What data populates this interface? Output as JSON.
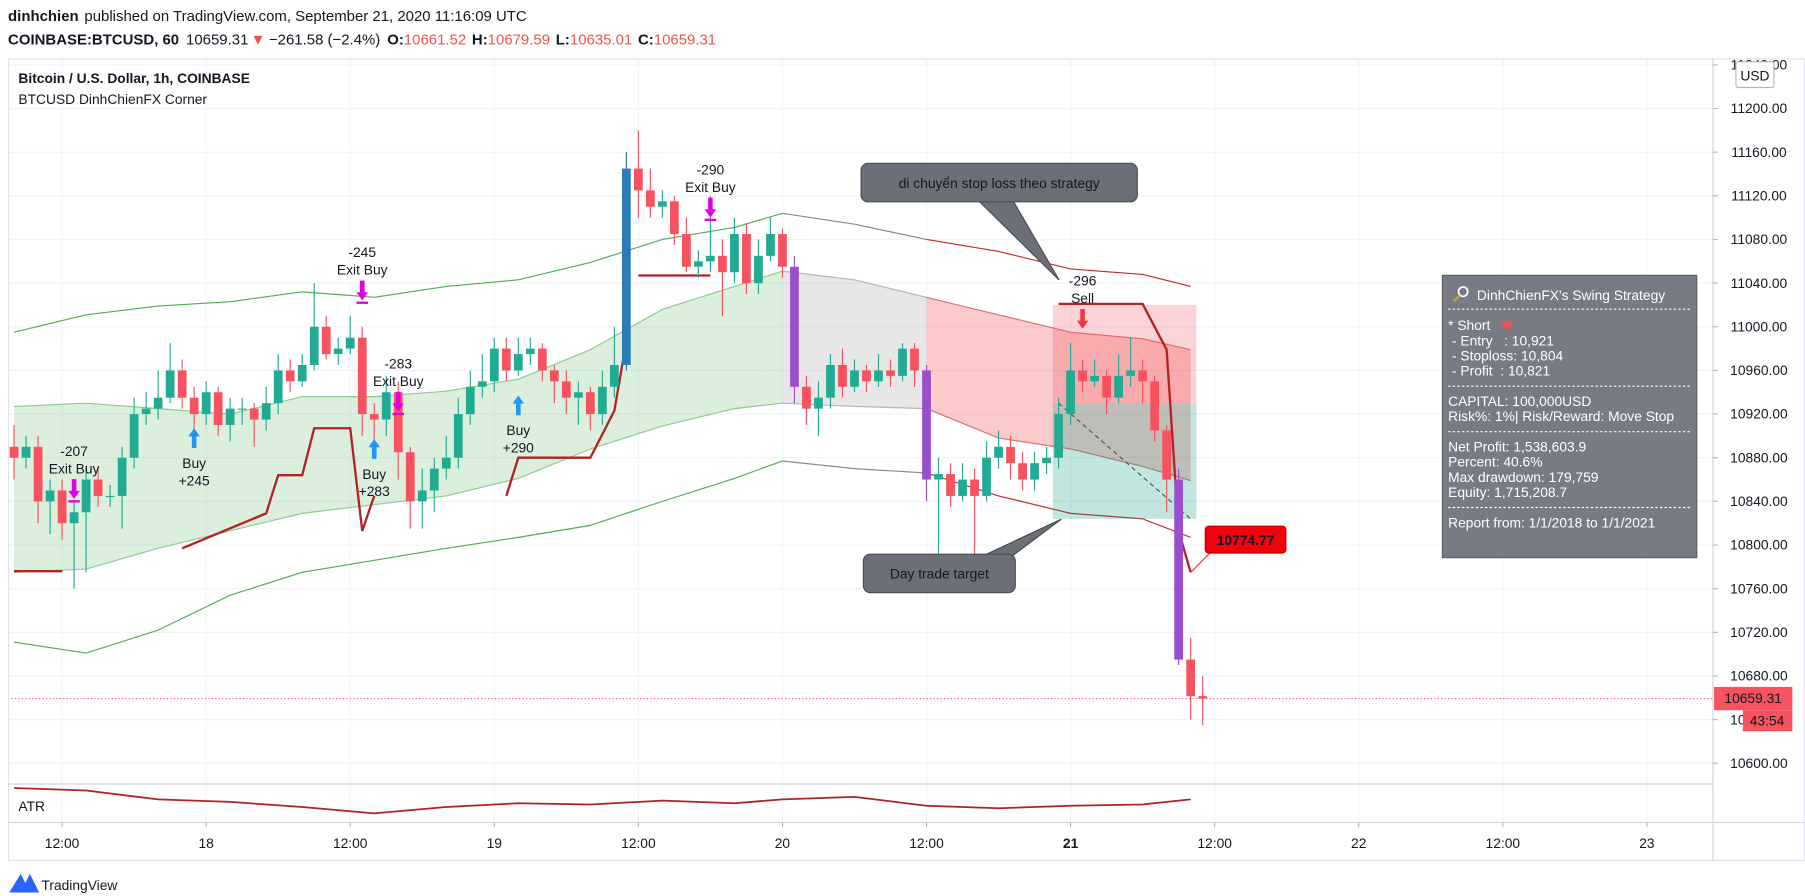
{
  "header": {
    "author": "dinhchien",
    "published": "published on TradingView.com, September 21, 2020 11:16:09 UTC",
    "symbol": "COINBASE:BTCUSD, 60",
    "last": "10659.31",
    "arrow": "▼",
    "change": "−261.58 (−2.4%)",
    "o_label": "O:",
    "o": "10661.52",
    "h_label": "H:",
    "h": "10679.59",
    "l_label": "L:",
    "l": "10635.01",
    "c_label": "C:",
    "c": "10659.31"
  },
  "chart_data": {
    "type": "candlestick",
    "title": "Bitcoin / U.S. Dollar, 1h, COINBASE",
    "subtitle": "BTCUSD DinhChienFX Corner",
    "currency": "USD",
    "xlim": [
      -0.5,
      141.5
    ],
    "xticks": [
      {
        "value": 4,
        "label": "12:00"
      },
      {
        "value": 16,
        "label": "18"
      },
      {
        "value": 28,
        "label": "12:00"
      },
      {
        "value": 40,
        "label": "19"
      },
      {
        "value": 52,
        "label": "12:00"
      },
      {
        "value": 64,
        "label": "20"
      },
      {
        "value": 76,
        "label": "12:00"
      },
      {
        "value": 88,
        "label": "21",
        "bold": true
      },
      {
        "value": 100,
        "label": "12:00"
      },
      {
        "value": 112,
        "label": "22"
      },
      {
        "value": 124,
        "label": "12:00"
      },
      {
        "value": 136,
        "label": "23"
      }
    ],
    "ylim": [
      10581,
      11246
    ],
    "yticks": [
      {
        "value": 10600,
        "label": "10600.00"
      },
      {
        "value": 10640,
        "label": "10640.00"
      },
      {
        "value": 10680,
        "label": "10680.00"
      },
      {
        "value": 10720,
        "label": "10720.00"
      },
      {
        "value": 10760,
        "label": "10760.00"
      },
      {
        "value": 10800,
        "label": "10800.00"
      },
      {
        "value": 10840,
        "label": "10840.00"
      },
      {
        "value": 10880,
        "label": "10880.00"
      },
      {
        "value": 10920,
        "label": "10920.00"
      },
      {
        "value": 10960,
        "label": "10960.00"
      },
      {
        "value": 11000,
        "label": "11000.00"
      },
      {
        "value": 11040,
        "label": "11040.00"
      },
      {
        "value": 11080,
        "label": "11080.00"
      },
      {
        "value": 11120,
        "label": "11120.00"
      },
      {
        "value": 11160,
        "label": "11160.00"
      },
      {
        "value": 11200,
        "label": "11200.00"
      },
      {
        "value": 11240,
        "label": "11240.00"
      }
    ],
    "grid": true,
    "up_color": "#22ab94",
    "down_color": "#f7525f",
    "bar_colors": {
      "51": "#2b7bb9",
      "65": "#9b4dca",
      "76": "#9b4dca",
      "97": "#9b4dca"
    },
    "open": [
      10890,
      10880,
      10890,
      10840,
      10850,
      10820,
      10830,
      10860,
      10845,
      10845,
      10880,
      10920,
      10925,
      10935,
      10960,
      10935,
      10920,
      10940,
      10910,
      10925,
      10925,
      10915,
      10930,
      10960,
      10950,
      10965,
      11000,
      10975,
      10980,
      10990,
      10920,
      10915,
      10940,
      10885,
      10840,
      10850,
      10870,
      10880,
      10920,
      10945,
      10950,
      10980,
      10960,
      10975,
      10980,
      10960,
      10950,
      10935,
      10940,
      10920,
      10945,
      10965,
      11145,
      11125,
      11110,
      11115,
      11085,
      11055,
      11060,
      11065,
      11050,
      11085,
      11040,
      11065,
      11085,
      11055,
      10945,
      10925,
      10935,
      10965,
      10945,
      10960,
      10950,
      10960,
      10955,
      10980,
      10960,
      10860,
      10865,
      10845,
      10860,
      10845,
      10880,
      10890,
      10875,
      10860,
      10875,
      10880,
      10920,
      10960,
      10950,
      10955,
      10935,
      10955,
      10960,
      10950,
      10905,
      10860,
      10695,
      10661.52
    ],
    "high": [
      10910,
      10900,
      10900,
      10860,
      10860,
      10840,
      10870,
      10870,
      10855,
      10890,
      10935,
      10940,
      10960,
      10985,
      10970,
      10945,
      10950,
      10945,
      10935,
      10935,
      10930,
      10945,
      10975,
      10970,
      10975,
      11040,
      11010,
      10990,
      11010,
      11000,
      10930,
      10955,
      10950,
      10890,
      10870,
      10880,
      10900,
      10935,
      10960,
      10975,
      10990,
      10990,
      10990,
      10990,
      10985,
      10965,
      10960,
      10950,
      10945,
      10960,
      11000,
      11160,
      11180,
      11145,
      11125,
      11120,
      11100,
      11070,
      11120,
      11080,
      11100,
      11095,
      11080,
      11100,
      11090,
      11065,
      10955,
      10950,
      10975,
      10980,
      10970,
      10965,
      10975,
      10970,
      10985,
      10985,
      10965,
      10880,
      10875,
      10875,
      10870,
      10895,
      10905,
      10900,
      10885,
      10885,
      10890,
      10935,
      10985,
      10970,
      10970,
      10960,
      10975,
      10990,
      10970,
      10955,
      10910,
      10870,
      10715,
      10679.59
    ],
    "low": [
      10860,
      10870,
      10820,
      10810,
      10805,
      10760,
      10775,
      10835,
      10835,
      10815,
      10870,
      10910,
      10915,
      10930,
      10925,
      10905,
      10910,
      10900,
      10895,
      10910,
      10890,
      10905,
      10920,
      10940,
      10945,
      10960,
      10970,
      10965,
      10975,
      10900,
      10880,
      10900,
      10860,
      10815,
      10815,
      10830,
      10860,
      10870,
      10910,
      10935,
      10940,
      10950,
      10955,
      10965,
      10950,
      10930,
      10920,
      10910,
      10905,
      10910,
      10935,
      10960,
      11100,
      11100,
      11100,
      11075,
      11050,
      11045,
      11050,
      11010,
      11040,
      11030,
      11030,
      11060,
      11045,
      10930,
      10910,
      10900,
      10925,
      10935,
      10940,
      10940,
      10945,
      10945,
      10950,
      10945,
      10840,
      10790,
      10835,
      10840,
      10790,
      10840,
      10870,
      10860,
      10850,
      10850,
      10865,
      10870,
      10910,
      10940,
      10945,
      10920,
      10930,
      10945,
      10930,
      10895,
      10830,
      10690,
      10640,
      10635.01
    ],
    "close": [
      10880,
      10890,
      10840,
      10850,
      10820,
      10830,
      10860,
      10845,
      10845,
      10880,
      10920,
      10925,
      10935,
      10960,
      10935,
      10920,
      10940,
      10910,
      10925,
      10925,
      10915,
      10930,
      10960,
      10950,
      10965,
      11000,
      10975,
      10980,
      10990,
      10920,
      10915,
      10940,
      10885,
      10840,
      10850,
      10870,
      10880,
      10920,
      10945,
      10950,
      10980,
      10960,
      10975,
      10980,
      10960,
      10950,
      10935,
      10940,
      10920,
      10945,
      10965,
      11145,
      11125,
      11110,
      11115,
      11085,
      11055,
      11060,
      11065,
      11050,
      11085,
      11040,
      11065,
      11085,
      11055,
      10945,
      10925,
      10935,
      10965,
      10945,
      10960,
      10950,
      10960,
      10955,
      10980,
      10960,
      10860,
      10865,
      10845,
      10860,
      10845,
      10880,
      10890,
      10875,
      10860,
      10875,
      10880,
      10920,
      10960,
      10950,
      10955,
      10935,
      10955,
      10960,
      10950,
      10905,
      10860,
      10695,
      10661.52,
      10659.31
    ],
    "bands": {
      "x": [
        0,
        6,
        12,
        18,
        24,
        30,
        36,
        42,
        48,
        54,
        60,
        64,
        70,
        76,
        82,
        88,
        94,
        98
      ],
      "upper": [
        10995,
        11011,
        11019,
        11023,
        11032,
        11027,
        11037,
        11043,
        11059,
        11080,
        11091,
        11104,
        11094,
        11080,
        11069,
        11053,
        11048,
        11037
      ],
      "basis": [
        10927,
        10930,
        10925,
        10920,
        10936,
        10936,
        10941,
        10952,
        10979,
        11016,
        11037,
        11051,
        11043,
        11027,
        11011,
        10995,
        10989,
        10979
      ],
      "lower_inner": [
        10775,
        10778,
        10797,
        10813,
        10829,
        10837,
        10845,
        10861,
        10888,
        10909,
        10925,
        10930,
        10927,
        10925,
        10898,
        10888,
        10872,
        10859
      ],
      "lower": [
        10711,
        10701,
        10722,
        10754,
        10775,
        10786,
        10797,
        10807,
        10818,
        10840,
        10861,
        10877,
        10870,
        10866,
        10845,
        10829,
        10824,
        10807
      ],
      "segments": [
        {
          "until": 64,
          "line": "#4caf50",
          "fill": "rgba(76,175,80,0.2)"
        },
        {
          "until": 76,
          "line": "#8a8a8a",
          "fill": "rgba(160,160,160,0.25)"
        },
        {
          "until": 98,
          "line": "#c62828",
          "fill": "rgba(239,83,80,0.3)"
        }
      ]
    },
    "stop": {
      "color": "#b22222",
      "x": [
        0,
        4,
        null,
        14,
        21,
        22,
        24,
        25,
        28,
        29,
        30,
        null,
        41,
        42,
        48,
        50,
        51,
        null,
        52,
        58,
        null,
        87,
        94,
        96,
        97,
        98
      ],
      "values": [
        10776,
        10776,
        null,
        10797,
        10829,
        10864,
        10864,
        10907,
        10907,
        10813,
        10845,
        null,
        10845,
        10880,
        10880,
        10923,
        10987,
        null,
        11047,
        11047,
        null,
        11021,
        11021,
        10979,
        10813,
        10775
      ]
    },
    "signals": [
      {
        "lines": [
          "-207",
          "Exit Buy"
        ],
        "x": 5,
        "y": 10886,
        "marker": "exit"
      },
      {
        "lines": [
          "Buy",
          "+245"
        ],
        "x": 15,
        "y": 10875,
        "marker": "buy"
      },
      {
        "lines": [
          "-245",
          "Exit Buy"
        ],
        "x": 29,
        "y": 11068,
        "marker": "exit"
      },
      {
        "lines": [
          "-283",
          "Exit Buy"
        ],
        "x": 32,
        "y": 10966,
        "marker": "exit"
      },
      {
        "lines": [
          "Buy",
          "+283"
        ],
        "x": 30,
        "y": 10865,
        "marker": "buy"
      },
      {
        "lines": [
          "Buy",
          "+290"
        ],
        "x": 42,
        "y": 10905,
        "marker": "buy"
      },
      {
        "lines": [
          "-290",
          "Exit Buy"
        ],
        "x": 58,
        "y": 11144,
        "marker": "exit"
      },
      {
        "lines": [
          "-296",
          "Sell"
        ],
        "x": 89,
        "y": 11042,
        "marker": "sell"
      }
    ],
    "position": {
      "x_from": 87,
      "x_to": 98,
      "top": 11020,
      "entry": 10930,
      "target": 10824
    },
    "price_tag": 10774.77,
    "last_price": 10659.31,
    "countdown": "43:54",
    "callouts": [
      "di chuyển stop loss theo strategy",
      "Day trade target"
    ],
    "atr": {
      "label": "ATR",
      "color": "#b22222",
      "ylim": [
        10,
        45
      ],
      "x": [
        0,
        6,
        12,
        18,
        24,
        30,
        36,
        42,
        48,
        54,
        60,
        64,
        70,
        76,
        82,
        88,
        94,
        98
      ],
      "values": [
        40,
        38,
        31,
        29,
        25,
        20,
        25,
        28,
        27,
        30,
        28,
        31,
        33,
        26,
        24,
        26,
        27,
        31
      ]
    },
    "info_panel": {
      "title": "DinhChienFX's Swing Strategy",
      "lines": [
        "* Short",
        " - Entry   : 10,921",
        " - Stoploss: 10,804",
        " - Profit  : 10,821",
        "CAPITAL: 100,000USD",
        "Risk%: 1%| Risk/Reward: Move Stop",
        "Net Profit: 1,538,603.9",
        "Percent: 40.6%",
        "Max drawdown: 179,759",
        "Equity: 1,715,208.7",
        "Report from: 1/1/2018 to 1/1/2021"
      ]
    }
  },
  "footer": "TradingView"
}
